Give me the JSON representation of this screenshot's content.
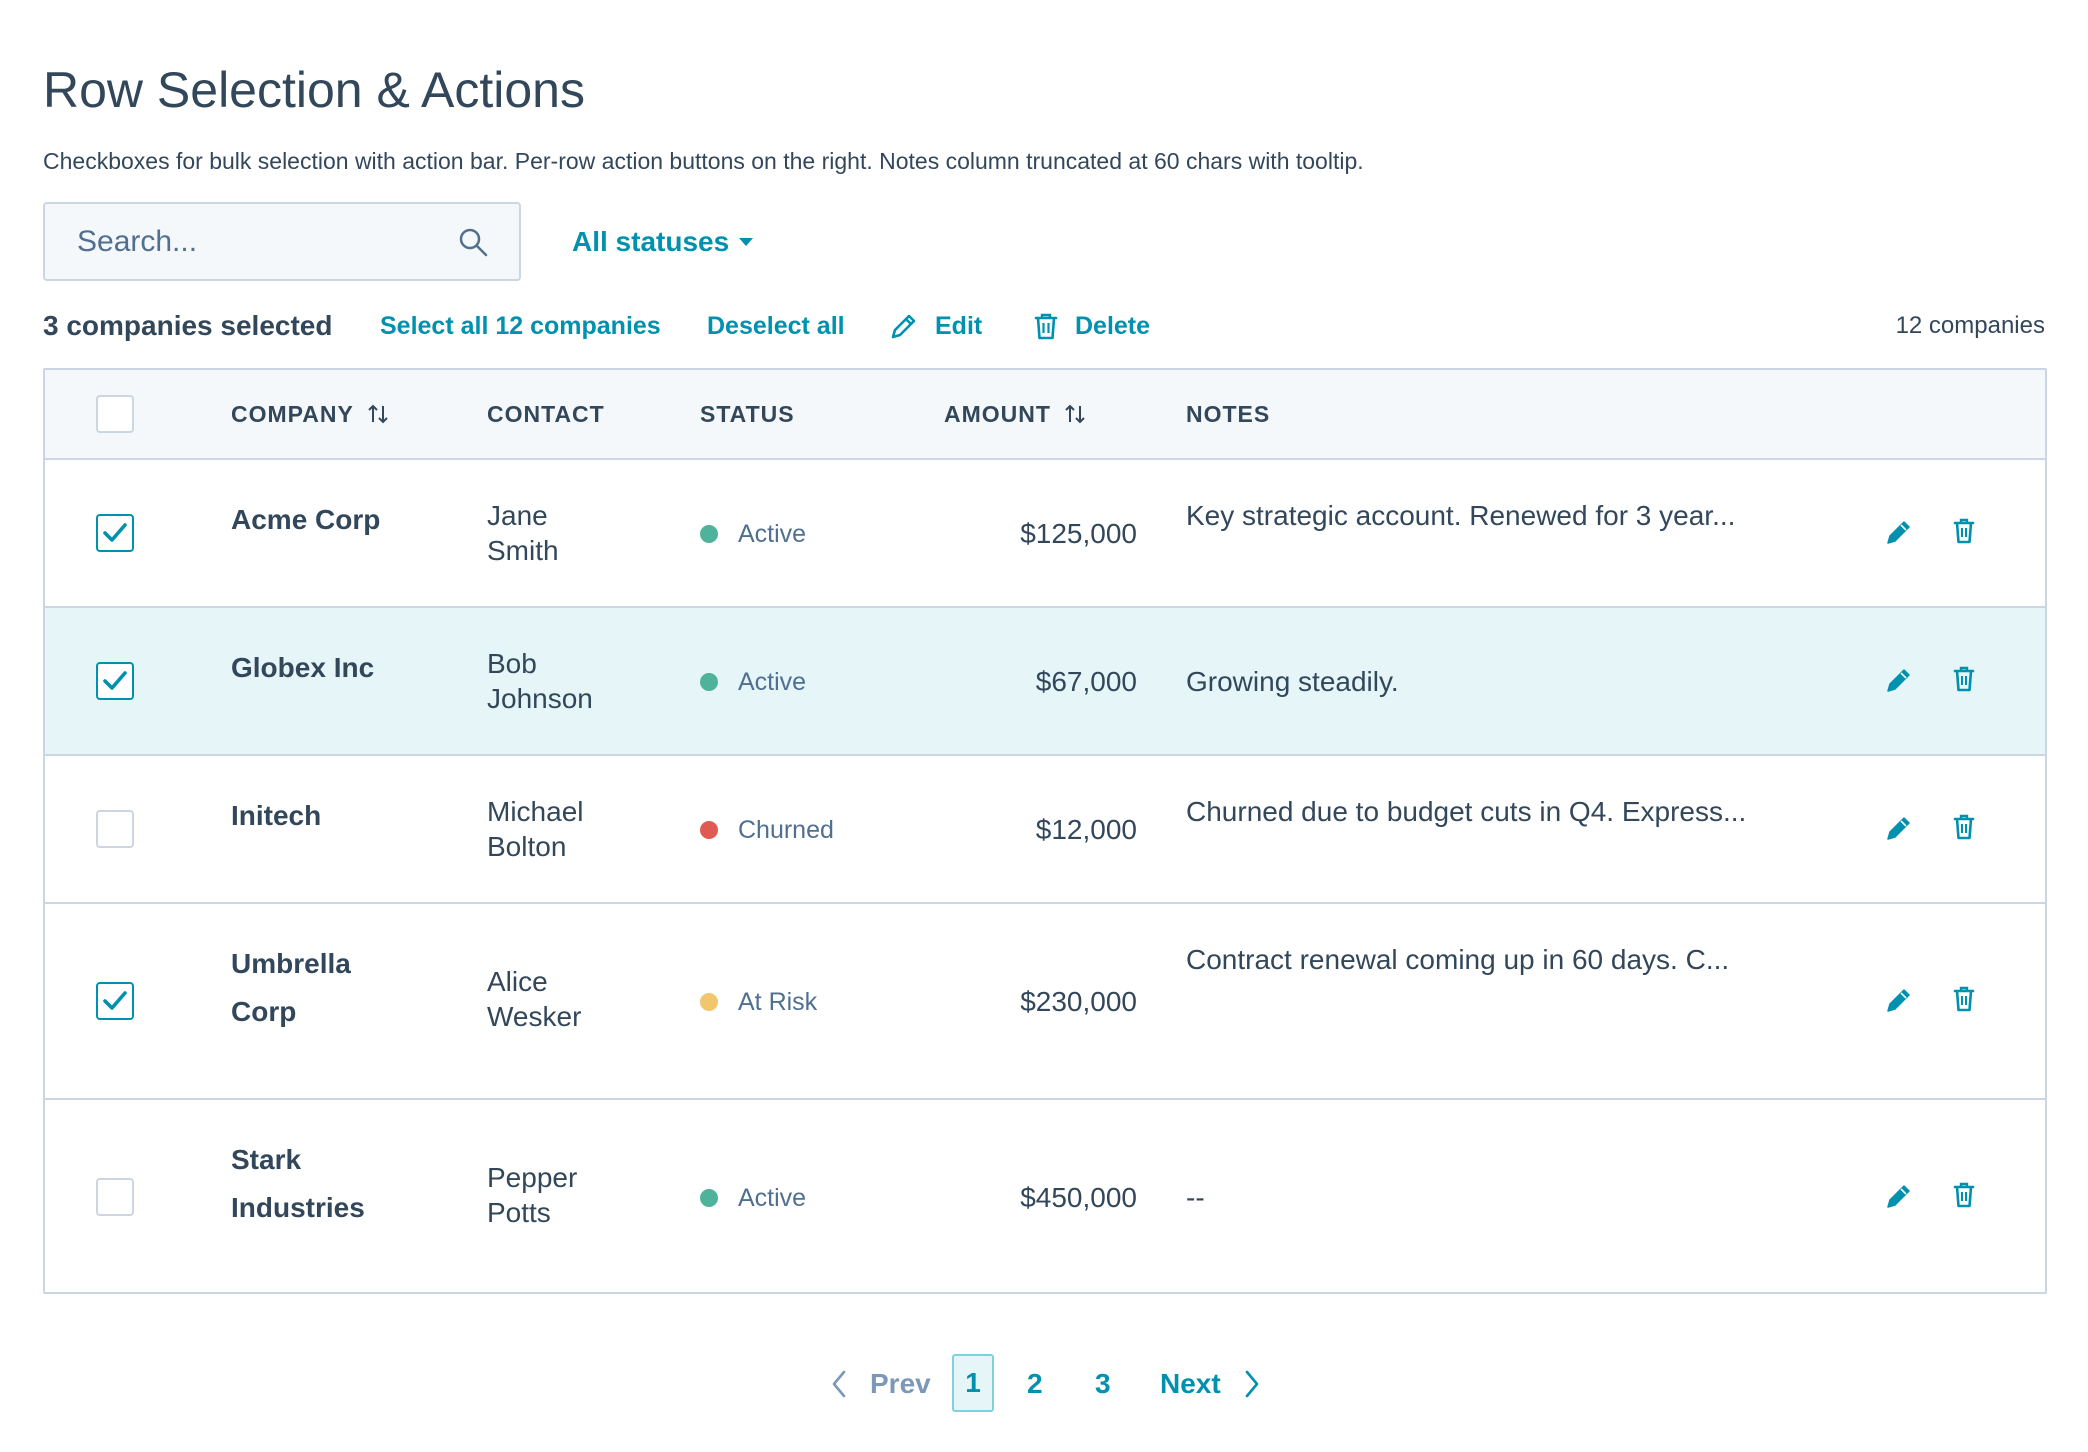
{
  "page": {
    "title": "Row Selection & Actions",
    "subtitle": "Checkboxes for bulk selection with action bar. Per-row action buttons on the right. Notes column truncated at 60 chars with tooltip."
  },
  "toolbar": {
    "search_placeholder": "Search...",
    "search_value": "",
    "status_filter_label": "All statuses"
  },
  "action_bar": {
    "selected_text": "3 companies selected",
    "select_all_label": "Select all 12 companies",
    "deselect_all_label": "Deselect all",
    "edit_label": "Edit",
    "delete_label": "Delete",
    "total_count": "12 companies"
  },
  "table": {
    "columns": {
      "company": "COMPANY",
      "contact": "CONTACT",
      "status": "STATUS",
      "amount": "AMOUNT",
      "notes": "NOTES"
    },
    "rows": [
      {
        "checked": true,
        "highlight": false,
        "company": [
          "Acme Corp"
        ],
        "contact": [
          "Jane",
          "Smith"
        ],
        "status": "Active",
        "status_color": "#4fb39c",
        "amount": "$125,000",
        "notes": "Key strategic account. Renewed for 3 year..."
      },
      {
        "checked": true,
        "highlight": true,
        "company": [
          "Globex Inc"
        ],
        "contact": [
          "Bob",
          "Johnson"
        ],
        "status": "Active",
        "status_color": "#4fb39c",
        "amount": "$67,000",
        "notes": "Growing steadily."
      },
      {
        "checked": false,
        "highlight": false,
        "company": [
          "Initech"
        ],
        "contact": [
          "Michael",
          "Bolton"
        ],
        "status": "Churned",
        "status_color": "#e05a54",
        "amount": "$12,000",
        "notes": "Churned due to budget cuts in Q4. Express..."
      },
      {
        "checked": true,
        "highlight": false,
        "company": [
          "Umbrella",
          "Corp"
        ],
        "contact": [
          "Alice",
          "Wesker"
        ],
        "status": "At Risk",
        "status_color": "#f2c66d",
        "amount": "$230,000",
        "notes": "Contract renewal coming up in 60 days. C..."
      },
      {
        "checked": false,
        "highlight": false,
        "company": [
          "Stark",
          "Industries"
        ],
        "contact": [
          "Pepper",
          "Potts"
        ],
        "status": "Active",
        "status_color": "#4fb39c",
        "amount": "$450,000",
        "notes": "--"
      }
    ]
  },
  "pagination": {
    "prev_label": "Prev",
    "pages": [
      "1",
      "2",
      "3"
    ],
    "current_page": "1",
    "next_label": "Next"
  },
  "colors": {
    "accent": "#0091ae",
    "text": "#33475b",
    "border": "#cbd6e2",
    "row_highlight": "#e5f5f8"
  },
  "icons": {
    "search": "search-icon",
    "edit": "pencil-icon",
    "delete": "trash-icon",
    "sort": "sort-arrows-icon",
    "check": "check-icon",
    "prev": "chevron-left-icon",
    "next": "chevron-right-icon"
  }
}
